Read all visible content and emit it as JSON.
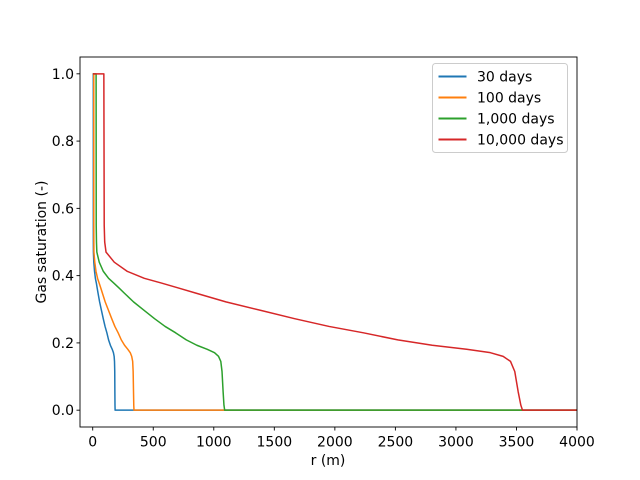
{
  "figure": {
    "background_color": "#ffffff"
  },
  "chart_data": {
    "type": "line",
    "xlabel": "r (m)",
    "ylabel": "Gas saturation (-)",
    "xlim": [
      -105,
      4000
    ],
    "ylim": [
      -0.05,
      1.05
    ],
    "x_ticks": [
      0,
      500,
      1000,
      1500,
      2000,
      2500,
      3000,
      3500,
      4000
    ],
    "x_tick_labels": [
      "0",
      "500",
      "1000",
      "1500",
      "2000",
      "2500",
      "3000",
      "3500",
      "4000"
    ],
    "y_ticks": [
      0.0,
      0.2,
      0.4,
      0.6,
      0.8,
      1.0
    ],
    "y_tick_labels": [
      "0.0",
      "0.2",
      "0.4",
      "0.6",
      "0.8",
      "1.0"
    ],
    "grid": false,
    "legend": {
      "position": "upper right",
      "background_color": "#ffffff",
      "border_color": "#cccccc",
      "entries": [
        "30 days",
        "100 days",
        "1,000 days",
        "10,000 days"
      ]
    },
    "series": [
      {
        "name": "30 days",
        "color": "#1f77b4",
        "points": [
          [
            1,
            1.0
          ],
          [
            4.8,
            1.0
          ],
          [
            5,
            0.55
          ],
          [
            5.2,
            0.5
          ],
          [
            5.7,
            0.47
          ],
          [
            9,
            0.44
          ],
          [
            15,
            0.413
          ],
          [
            22,
            0.392
          ],
          [
            30,
            0.378
          ],
          [
            37,
            0.363
          ],
          [
            44,
            0.348
          ],
          [
            57,
            0.322
          ],
          [
            72,
            0.297
          ],
          [
            87,
            0.272
          ],
          [
            102,
            0.249
          ],
          [
            117,
            0.23
          ],
          [
            131,
            0.209
          ],
          [
            146,
            0.193
          ],
          [
            161,
            0.181
          ],
          [
            171,
            0.171
          ],
          [
            177,
            0.16
          ],
          [
            180,
            0.145
          ],
          [
            182,
            0.115
          ],
          [
            183,
            0.055
          ],
          [
            184,
            0.015
          ],
          [
            185,
            0.0
          ],
          [
            4000,
            0.0
          ]
        ]
      },
      {
        "name": "100 days",
        "color": "#ff7f0e",
        "points": [
          [
            1,
            1.0
          ],
          [
            8.7,
            1.0
          ],
          [
            9,
            0.55
          ],
          [
            9.4,
            0.5
          ],
          [
            10,
            0.47
          ],
          [
            17,
            0.44
          ],
          [
            27,
            0.413
          ],
          [
            40,
            0.392
          ],
          [
            53,
            0.378
          ],
          [
            67,
            0.363
          ],
          [
            80,
            0.348
          ],
          [
            103,
            0.322
          ],
          [
            130,
            0.297
          ],
          [
            157,
            0.272
          ],
          [
            183,
            0.249
          ],
          [
            210,
            0.23
          ],
          [
            236,
            0.209
          ],
          [
            263,
            0.193
          ],
          [
            290,
            0.181
          ],
          [
            310,
            0.171
          ],
          [
            322,
            0.16
          ],
          [
            330,
            0.145
          ],
          [
            334,
            0.115
          ],
          [
            337,
            0.055
          ],
          [
            339,
            0.015
          ],
          [
            341,
            0.0
          ],
          [
            4000,
            0.0
          ]
        ]
      },
      {
        "name": "1,000 days",
        "color": "#2ca02c",
        "points": [
          [
            1,
            1.0
          ],
          [
            28,
            1.0
          ],
          [
            29,
            0.55
          ],
          [
            31,
            0.5
          ],
          [
            34,
            0.47
          ],
          [
            54,
            0.44
          ],
          [
            87,
            0.413
          ],
          [
            131,
            0.392
          ],
          [
            174,
            0.378
          ],
          [
            218,
            0.363
          ],
          [
            261,
            0.348
          ],
          [
            337,
            0.322
          ],
          [
            424,
            0.297
          ],
          [
            511,
            0.272
          ],
          [
            598,
            0.249
          ],
          [
            685,
            0.23
          ],
          [
            773,
            0.209
          ],
          [
            860,
            0.193
          ],
          [
            946,
            0.181
          ],
          [
            1006,
            0.171
          ],
          [
            1039,
            0.16
          ],
          [
            1058,
            0.145
          ],
          [
            1068,
            0.115
          ],
          [
            1077,
            0.055
          ],
          [
            1084,
            0.015
          ],
          [
            1090,
            0.0
          ],
          [
            4000,
            0.0
          ]
        ]
      },
      {
        "name": "10,000 days",
        "color": "#d62728",
        "points": [
          [
            1,
            1.0
          ],
          [
            92,
            1.0
          ],
          [
            95,
            0.55
          ],
          [
            99,
            0.5
          ],
          [
            110,
            0.47
          ],
          [
            178,
            0.44
          ],
          [
            284,
            0.413
          ],
          [
            426,
            0.392
          ],
          [
            568,
            0.378
          ],
          [
            710,
            0.363
          ],
          [
            852,
            0.348
          ],
          [
            1100,
            0.322
          ],
          [
            1384,
            0.297
          ],
          [
            1668,
            0.272
          ],
          [
            1952,
            0.249
          ],
          [
            2236,
            0.23
          ],
          [
            2520,
            0.209
          ],
          [
            2804,
            0.193
          ],
          [
            3088,
            0.181
          ],
          [
            3284,
            0.171
          ],
          [
            3390,
            0.16
          ],
          [
            3451,
            0.145
          ],
          [
            3486,
            0.115
          ],
          [
            3514,
            0.055
          ],
          [
            3536,
            0.015
          ],
          [
            3550,
            0.0
          ],
          [
            4000,
            0.0
          ]
        ]
      }
    ]
  }
}
